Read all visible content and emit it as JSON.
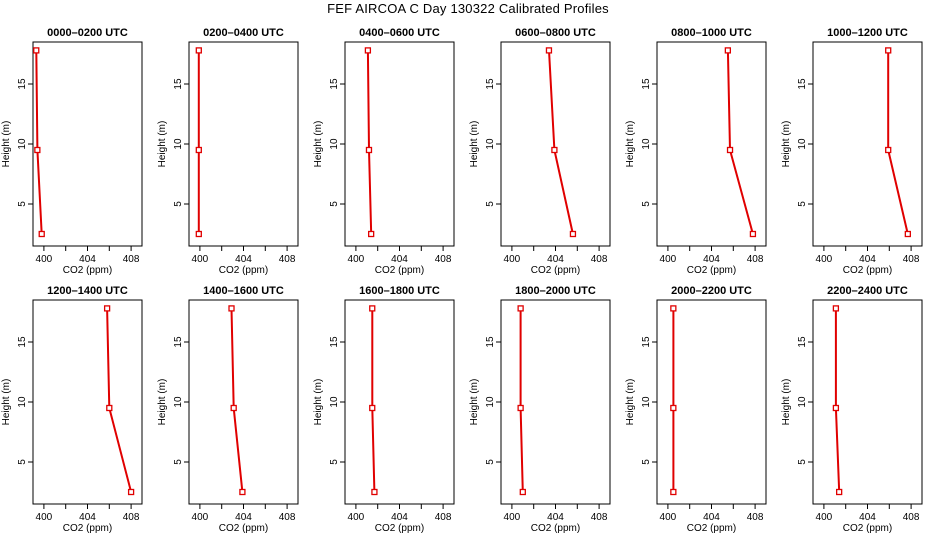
{
  "title": "FEF AIRCOA C  Day 130322  Calibrated Profiles",
  "colors": {
    "profile": "#e00000",
    "axis": "#000000"
  },
  "chart_data": [
    {
      "type": "line",
      "title": "0000–0200 UTC",
      "xlabel": "CO2 (ppm)",
      "ylabel": "Height (m)",
      "xlim": [
        399,
        409
      ],
      "ylim": [
        1.5,
        18.5
      ],
      "xticks": [
        400,
        402,
        404,
        406,
        408
      ],
      "xtick_labels": [
        "400",
        "",
        "404",
        "",
        "408"
      ],
      "yticks": [
        5,
        10,
        15
      ],
      "series": [
        {
          "x": [
            399.3,
            399.4,
            399.8
          ],
          "y": [
            17.8,
            9.5,
            2.5
          ]
        }
      ]
    },
    {
      "type": "line",
      "title": "0200–0400 UTC",
      "xlabel": "CO2 (ppm)",
      "ylabel": "Height (m)",
      "xlim": [
        399,
        409
      ],
      "ylim": [
        1.5,
        18.5
      ],
      "xticks": [
        400,
        402,
        404,
        406,
        408
      ],
      "xtick_labels": [
        "400",
        "",
        "404",
        "",
        "408"
      ],
      "yticks": [
        5,
        10,
        15
      ],
      "series": [
        {
          "x": [
            399.9,
            399.9,
            399.9
          ],
          "y": [
            17.8,
            9.5,
            2.5
          ]
        }
      ]
    },
    {
      "type": "line",
      "title": "0400–0600 UTC",
      "xlabel": "CO2 (ppm)",
      "ylabel": "Height (m)",
      "xlim": [
        399,
        409
      ],
      "ylim": [
        1.5,
        18.5
      ],
      "xticks": [
        400,
        402,
        404,
        406,
        408
      ],
      "xtick_labels": [
        "400",
        "",
        "404",
        "",
        "408"
      ],
      "yticks": [
        5,
        10,
        15
      ],
      "series": [
        {
          "x": [
            401.1,
            401.2,
            401.4
          ],
          "y": [
            17.8,
            9.5,
            2.5
          ]
        }
      ]
    },
    {
      "type": "line",
      "title": "0600–0800 UTC",
      "xlabel": "CO2 (ppm)",
      "ylabel": "Height (m)",
      "xlim": [
        399,
        409
      ],
      "ylim": [
        1.5,
        18.5
      ],
      "xticks": [
        400,
        402,
        404,
        406,
        408
      ],
      "xtick_labels": [
        "400",
        "",
        "404",
        "",
        "408"
      ],
      "yticks": [
        5,
        10,
        15
      ],
      "series": [
        {
          "x": [
            403.4,
            403.9,
            405.6
          ],
          "y": [
            17.8,
            9.5,
            2.5
          ]
        }
      ]
    },
    {
      "type": "line",
      "title": "0800–1000 UTC",
      "xlabel": "CO2 (ppm)",
      "ylabel": "Height (m)",
      "xlim": [
        399,
        409
      ],
      "ylim": [
        1.5,
        18.5
      ],
      "xticks": [
        400,
        402,
        404,
        406,
        408
      ],
      "xtick_labels": [
        "400",
        "",
        "404",
        "",
        "408"
      ],
      "yticks": [
        5,
        10,
        15
      ],
      "series": [
        {
          "x": [
            405.5,
            405.7,
            407.8
          ],
          "y": [
            17.8,
            9.5,
            2.5
          ]
        }
      ]
    },
    {
      "type": "line",
      "title": "1000–1200 UTC",
      "xlabel": "CO2 (ppm)",
      "ylabel": "Height (m)",
      "xlim": [
        399,
        409
      ],
      "ylim": [
        1.5,
        18.5
      ],
      "xticks": [
        400,
        402,
        404,
        406,
        408
      ],
      "xtick_labels": [
        "400",
        "",
        "404",
        "",
        "408"
      ],
      "yticks": [
        5,
        10,
        15
      ],
      "series": [
        {
          "x": [
            405.9,
            405.9,
            407.7
          ],
          "y": [
            17.8,
            9.5,
            2.5
          ]
        }
      ]
    },
    {
      "type": "line",
      "title": "1200–1400 UTC",
      "xlabel": "CO2 (ppm)",
      "ylabel": "Height (m)",
      "xlim": [
        399,
        409
      ],
      "ylim": [
        1.5,
        18.5
      ],
      "xticks": [
        400,
        402,
        404,
        406,
        408
      ],
      "xtick_labels": [
        "400",
        "",
        "404",
        "",
        "408"
      ],
      "yticks": [
        5,
        10,
        15
      ],
      "series": [
        {
          "x": [
            405.8,
            406.0,
            408.0
          ],
          "y": [
            17.8,
            9.5,
            2.5
          ]
        }
      ]
    },
    {
      "type": "line",
      "title": "1400–1600 UTC",
      "xlabel": "CO2 (ppm)",
      "ylabel": "Height (m)",
      "xlim": [
        399,
        409
      ],
      "ylim": [
        1.5,
        18.5
      ],
      "xticks": [
        400,
        402,
        404,
        406,
        408
      ],
      "xtick_labels": [
        "400",
        "",
        "404",
        "",
        "408"
      ],
      "yticks": [
        5,
        10,
        15
      ],
      "series": [
        {
          "x": [
            402.9,
            403.1,
            403.9
          ],
          "y": [
            17.8,
            9.5,
            2.5
          ]
        }
      ]
    },
    {
      "type": "line",
      "title": "1600–1800 UTC",
      "xlabel": "CO2 (ppm)",
      "ylabel": "Height (m)",
      "xlim": [
        399,
        409
      ],
      "ylim": [
        1.5,
        18.5
      ],
      "xticks": [
        400,
        402,
        404,
        406,
        408
      ],
      "xtick_labels": [
        "400",
        "",
        "404",
        "",
        "408"
      ],
      "yticks": [
        5,
        10,
        15
      ],
      "series": [
        {
          "x": [
            401.5,
            401.5,
            401.7
          ],
          "y": [
            17.8,
            9.5,
            2.5
          ]
        }
      ]
    },
    {
      "type": "line",
      "title": "1800–2000 UTC",
      "xlabel": "CO2 (ppm)",
      "ylabel": "Height (m)",
      "xlim": [
        399,
        409
      ],
      "ylim": [
        1.5,
        18.5
      ],
      "xticks": [
        400,
        402,
        404,
        406,
        408
      ],
      "xtick_labels": [
        "400",
        "",
        "404",
        "",
        "408"
      ],
      "yticks": [
        5,
        10,
        15
      ],
      "series": [
        {
          "x": [
            400.8,
            400.8,
            401.0
          ],
          "y": [
            17.8,
            9.5,
            2.5
          ]
        }
      ]
    },
    {
      "type": "line",
      "title": "2000–2200 UTC",
      "xlabel": "CO2 (ppm)",
      "ylabel": "Height (m)",
      "xlim": [
        399,
        409
      ],
      "ylim": [
        1.5,
        18.5
      ],
      "xticks": [
        400,
        402,
        404,
        406,
        408
      ],
      "xtick_labels": [
        "400",
        "",
        "404",
        "",
        "408"
      ],
      "yticks": [
        5,
        10,
        15
      ],
      "series": [
        {
          "x": [
            400.5,
            400.5,
            400.5
          ],
          "y": [
            17.8,
            9.5,
            2.5
          ]
        }
      ]
    },
    {
      "type": "line",
      "title": "2200–2400 UTC",
      "xlabel": "CO2 (ppm)",
      "ylabel": "Height (m)",
      "xlim": [
        399,
        409
      ],
      "ylim": [
        1.5,
        18.5
      ],
      "xticks": [
        400,
        402,
        404,
        406,
        408
      ],
      "xtick_labels": [
        "400",
        "",
        "404",
        "",
        "408"
      ],
      "yticks": [
        5,
        10,
        15
      ],
      "series": [
        {
          "x": [
            401.1,
            401.1,
            401.4
          ],
          "y": [
            17.8,
            9.5,
            2.5
          ]
        }
      ]
    }
  ]
}
